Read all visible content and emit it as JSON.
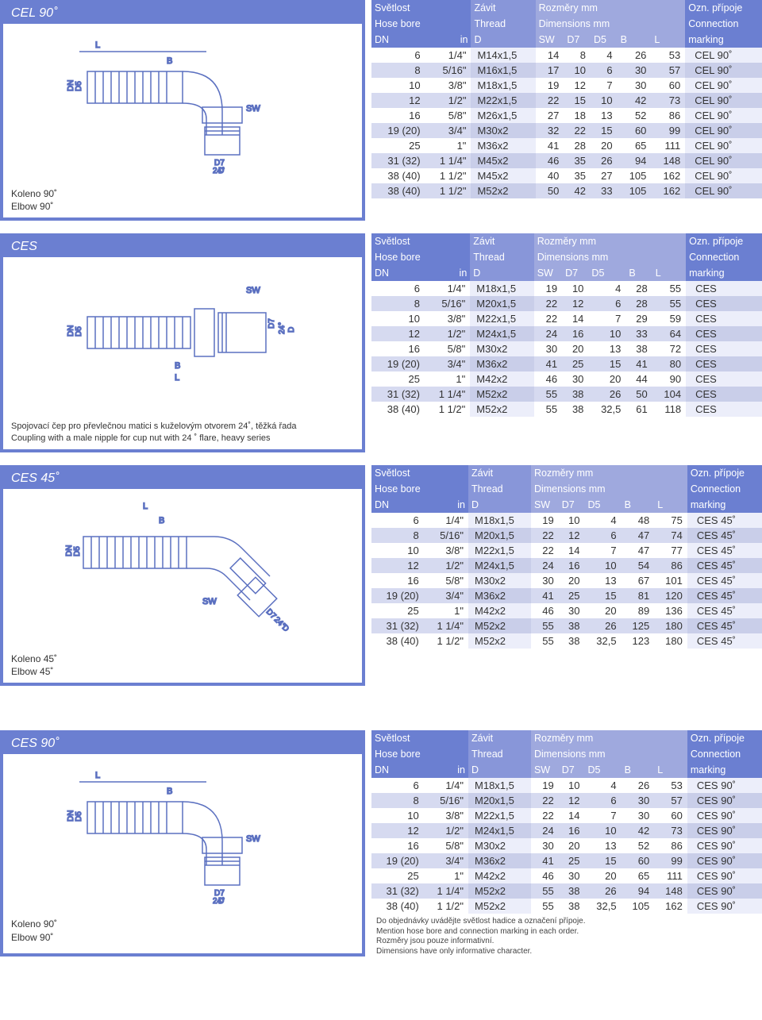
{
  "headers": {
    "hose_cz": "Světlost",
    "hose_en": "Hose bore",
    "dn": "DN",
    "in": "in",
    "thread_cz": "Závit",
    "thread_en": "Thread",
    "d": "D",
    "dims_cz": "Rozměry mm",
    "dims_en": "Dimensions mm",
    "sw": "SW",
    "d7": "D7",
    "d5": "D5",
    "b": "B",
    "l": "L",
    "mark_cz": "Ozn. přípoje",
    "mark_en": "Connection",
    "mark_sub": "marking"
  },
  "sections": [
    {
      "title": "CEL 90˚",
      "caption": [
        "Koleno 90˚",
        "Elbow 90˚"
      ],
      "diagram": "elbow90",
      "rows": [
        [
          "6",
          "1/4\"",
          "M14x1,5",
          "14",
          "8",
          "4",
          "26",
          "53",
          "CEL 90˚"
        ],
        [
          "8",
          "5/16\"",
          "M16x1,5",
          "17",
          "10",
          "6",
          "30",
          "57",
          "CEL 90˚"
        ],
        [
          "10",
          "3/8\"",
          "M18x1,5",
          "19",
          "12",
          "7",
          "30",
          "60",
          "CEL 90˚"
        ],
        [
          "12",
          "1/2\"",
          "M22x1,5",
          "22",
          "15",
          "10",
          "42",
          "73",
          "CEL 90˚"
        ],
        [
          "16",
          "5/8\"",
          "M26x1,5",
          "27",
          "18",
          "13",
          "52",
          "86",
          "CEL 90˚"
        ],
        [
          "19 (20)",
          "3/4\"",
          "M30x2",
          "32",
          "22",
          "15",
          "60",
          "99",
          "CEL 90˚"
        ],
        [
          "25",
          "1\"",
          "M36x2",
          "41",
          "28",
          "20",
          "65",
          "111",
          "CEL 90˚"
        ],
        [
          "31 (32)",
          "1 1/4\"",
          "M45x2",
          "46",
          "35",
          "26",
          "94",
          "148",
          "CEL 90˚"
        ],
        [
          "38 (40)",
          "1 1/2\"",
          "M45x2",
          "40",
          "35",
          "27",
          "105",
          "162",
          "CEL 90˚"
        ],
        [
          "38 (40)",
          "1 1/2\"",
          "M52x2",
          "50",
          "42",
          "33",
          "105",
          "162",
          "CEL 90˚"
        ]
      ]
    },
    {
      "title": "CES",
      "caption_desc": [
        "Spojovací čep pro převlečnou matici s kuželovým otvorem 24˚, těžká řada",
        "Coupling with a male nipple for cup nut with 24 ˚ flare, heavy series"
      ],
      "diagram": "straight",
      "rows": [
        [
          "6",
          "1/4\"",
          "M18x1,5",
          "19",
          "10",
          "4",
          "28",
          "55",
          "CES"
        ],
        [
          "8",
          "5/16\"",
          "M20x1,5",
          "22",
          "12",
          "6",
          "28",
          "55",
          "CES"
        ],
        [
          "10",
          "3/8\"",
          "M22x1,5",
          "22",
          "14",
          "7",
          "29",
          "59",
          "CES"
        ],
        [
          "12",
          "1/2\"",
          "M24x1,5",
          "24",
          "16",
          "10",
          "33",
          "64",
          "CES"
        ],
        [
          "16",
          "5/8\"",
          "M30x2",
          "30",
          "20",
          "13",
          "38",
          "72",
          "CES"
        ],
        [
          "19 (20)",
          "3/4\"",
          "M36x2",
          "41",
          "25",
          "15",
          "41",
          "80",
          "CES"
        ],
        [
          "25",
          "1\"",
          "M42x2",
          "46",
          "30",
          "20",
          "44",
          "90",
          "CES"
        ],
        [
          "31 (32)",
          "1 1/4\"",
          "M52x2",
          "55",
          "38",
          "26",
          "50",
          "104",
          "CES"
        ],
        [
          "38 (40)",
          "1 1/2\"",
          "M52x2",
          "55",
          "38",
          "32,5",
          "61",
          "118",
          "CES"
        ]
      ]
    },
    {
      "title": "CES 45˚",
      "caption": [
        "Koleno 45˚",
        "Elbow 45˚"
      ],
      "diagram": "elbow45",
      "rows": [
        [
          "6",
          "1/4\"",
          "M18x1,5",
          "19",
          "10",
          "4",
          "48",
          "75",
          "CES 45˚"
        ],
        [
          "8",
          "5/16\"",
          "M20x1,5",
          "22",
          "12",
          "6",
          "47",
          "74",
          "CES 45˚"
        ],
        [
          "10",
          "3/8\"",
          "M22x1,5",
          "22",
          "14",
          "7",
          "47",
          "77",
          "CES 45˚"
        ],
        [
          "12",
          "1/2\"",
          "M24x1,5",
          "24",
          "16",
          "10",
          "54",
          "86",
          "CES 45˚"
        ],
        [
          "16",
          "5/8\"",
          "M30x2",
          "30",
          "20",
          "13",
          "67",
          "101",
          "CES 45˚"
        ],
        [
          "19 (20)",
          "3/4\"",
          "M36x2",
          "41",
          "25",
          "15",
          "81",
          "120",
          "CES 45˚"
        ],
        [
          "25",
          "1\"",
          "M42x2",
          "46",
          "30",
          "20",
          "89",
          "136",
          "CES 45˚"
        ],
        [
          "31 (32)",
          "1 1/4\"",
          "M52x2",
          "55",
          "38",
          "26",
          "125",
          "180",
          "CES 45˚"
        ],
        [
          "38 (40)",
          "1 1/2\"",
          "M52x2",
          "55",
          "38",
          "32,5",
          "123",
          "180",
          "CES 45˚"
        ]
      ]
    },
    {
      "title": "CES 90˚",
      "caption": [
        "Koleno 90˚",
        "Elbow 90˚"
      ],
      "diagram": "elbow90",
      "rows": [
        [
          "6",
          "1/4\"",
          "M18x1,5",
          "19",
          "10",
          "4",
          "26",
          "53",
          "CES 90˚"
        ],
        [
          "8",
          "5/16\"",
          "M20x1,5",
          "22",
          "12",
          "6",
          "30",
          "57",
          "CES 90˚"
        ],
        [
          "10",
          "3/8\"",
          "M22x1,5",
          "22",
          "14",
          "7",
          "30",
          "60",
          "CES 90˚"
        ],
        [
          "12",
          "1/2\"",
          "M24x1,5",
          "24",
          "16",
          "10",
          "42",
          "73",
          "CES 90˚"
        ],
        [
          "16",
          "5/8\"",
          "M30x2",
          "30",
          "20",
          "13",
          "52",
          "86",
          "CES 90˚"
        ],
        [
          "19 (20)",
          "3/4\"",
          "M36x2",
          "41",
          "25",
          "15",
          "60",
          "99",
          "CES 90˚"
        ],
        [
          "25",
          "1\"",
          "M42x2",
          "46",
          "30",
          "20",
          "65",
          "111",
          "CES 90˚"
        ],
        [
          "31 (32)",
          "1 1/4\"",
          "M52x2",
          "55",
          "38",
          "26",
          "94",
          "148",
          "CES 90˚"
        ],
        [
          "38 (40)",
          "1 1/2\"",
          "M52x2",
          "55",
          "38",
          "32,5",
          "105",
          "162",
          "CES 90˚"
        ]
      ],
      "footnote": [
        "Do objednávky uvádějte světlost hadice a označení přípoje.",
        "Mention hose bore and connection marking in each order.",
        "Rozměry jsou pouze informativní.",
        "Dimensions have only informative character."
      ]
    }
  ],
  "colors": {
    "frame": "#6b7fd1",
    "hdr1": "#6b7fd1",
    "hdr2": "#8896d9",
    "hdr3": "#9fa9de",
    "stripe_even": "#d6daf0",
    "band_even": "#c9cee9",
    "band_odd": "#eceefa"
  }
}
